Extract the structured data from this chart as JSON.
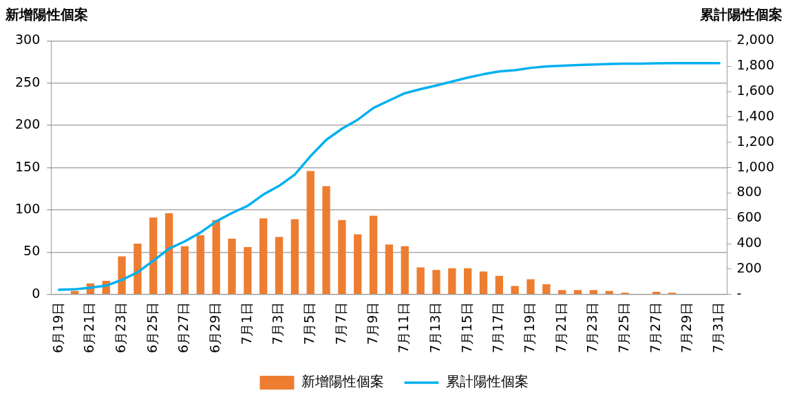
{
  "chart_data": {
    "type": "bar",
    "ylabel": "新增陽性個案",
    "y2label": "累計陽性個案",
    "categories": [
      "6月19日",
      null,
      "6月21日",
      null,
      "6月23日",
      null,
      "6月25日",
      null,
      "6月27日",
      null,
      "6月29日",
      null,
      "7月1日",
      null,
      "7月3日",
      null,
      "7月5日",
      null,
      "7月7日",
      null,
      "7月9日",
      null,
      "7月11日",
      null,
      "7月13日",
      null,
      "7月15日",
      null,
      "7月17日",
      null,
      "7月19日",
      null,
      "7月21日",
      null,
      "7月23日",
      null,
      "7月25日",
      null,
      "7月27日",
      null,
      "7月29日",
      null,
      "7月31日"
    ],
    "series": [
      {
        "name": "新增陽性個案",
        "color": "#ed7d31",
        "values": [
          0,
          4,
          13,
          16,
          45,
          60,
          91,
          96,
          57,
          70,
          88,
          66,
          56,
          90,
          68,
          89,
          146,
          128,
          88,
          71,
          93,
          59,
          57,
          32,
          29,
          31,
          31,
          27,
          22,
          10,
          18,
          12,
          5,
          5,
          5,
          4,
          2,
          0,
          3,
          2,
          0,
          0,
          0
        ]
      },
      {
        "name": "累計陽性個案",
        "type": "line",
        "axis": "y2",
        "color": "#00b0f0",
        "values": [
          36,
          40,
          53,
          69,
          114,
          174,
          265,
          361,
          418,
          488,
          576,
          642,
          698,
          788,
          856,
          945,
          1091,
          1219,
          1307,
          1378,
          1471,
          1530,
          1587,
          1619,
          1648,
          1679,
          1710,
          1737,
          1759,
          1769,
          1787,
          1799,
          1804,
          1809,
          1814,
          1818,
          1820,
          1820,
          1823,
          1825,
          1825,
          1825,
          1825
        ]
      }
    ],
    "ylim": [
      0,
      300
    ],
    "yticks": [
      0,
      50,
      100,
      150,
      200,
      250,
      300
    ],
    "y2lim": [
      0,
      2000
    ],
    "y2ticks": [
      {
        "value": 0,
        "label": "-"
      },
      200,
      400,
      600,
      800,
      {
        "value": 1000,
        "label": "1,000"
      },
      {
        "value": 1200,
        "label": "1,200"
      },
      {
        "value": 1400,
        "label": "1,400"
      },
      {
        "value": 1600,
        "label": "1,600"
      },
      {
        "value": 1800,
        "label": "1,800"
      },
      {
        "value": 2000,
        "label": "2,000"
      }
    ],
    "grid": "y",
    "legend": "bottom",
    "marker": "none",
    "line_style": "solid"
  }
}
